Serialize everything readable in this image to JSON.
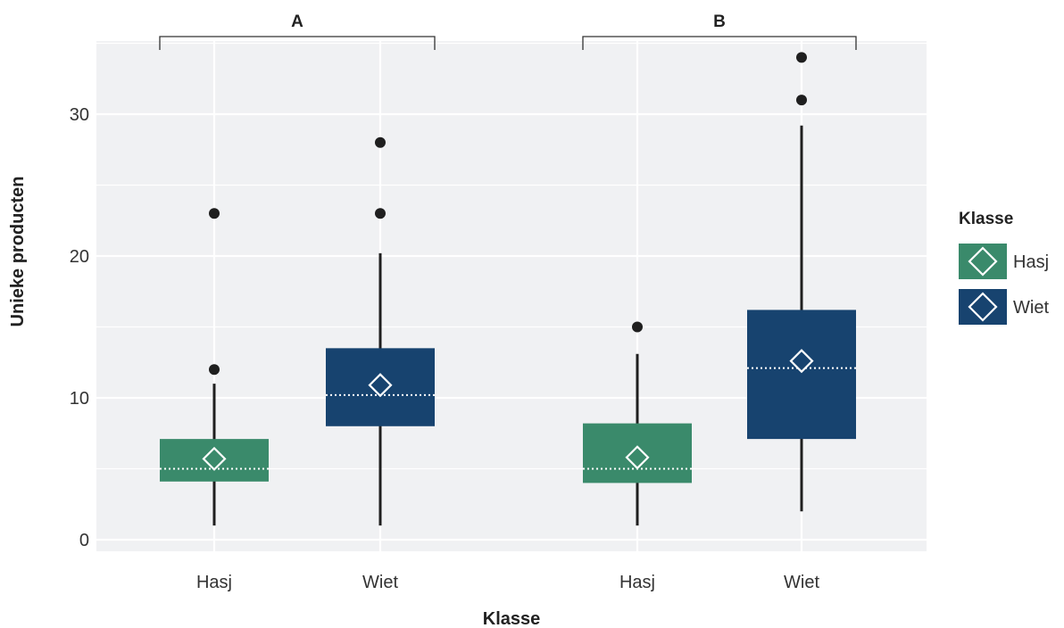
{
  "chart_data": {
    "type": "boxplot",
    "xlabel": "Klasse",
    "ylabel": "Unieke producten",
    "ylim": [
      -1,
      35.5
    ],
    "y_ticks": [
      0,
      10,
      20,
      30
    ],
    "grid": true,
    "facets": [
      "A",
      "B"
    ],
    "categories": [
      "Hasj",
      "Wiet"
    ],
    "legend": {
      "title": "Klasse",
      "placement": "right",
      "items": [
        {
          "label": "Hasj",
          "color": "#3a8a6b"
        },
        {
          "label": "Wiet",
          "color": "#17436f"
        }
      ]
    },
    "series": [
      {
        "facet": "A",
        "category": "Hasj",
        "color": "#3a8a6b",
        "min": 1,
        "q1": 4.1,
        "median": 5,
        "mean": 5.7,
        "q3": 7.1,
        "max": 11,
        "outliers": [
          12,
          23
        ]
      },
      {
        "facet": "A",
        "category": "Wiet",
        "color": "#17436f",
        "min": 1,
        "q1": 8,
        "median": 10.2,
        "mean": 10.9,
        "q3": 13.5,
        "max": 20.2,
        "outliers": [
          23,
          28
        ]
      },
      {
        "facet": "B",
        "category": "Hasj",
        "color": "#3a8a6b",
        "min": 1,
        "q1": 4,
        "median": 5,
        "mean": 5.8,
        "q3": 8.2,
        "max": 13.1,
        "outliers": [
          15
        ]
      },
      {
        "facet": "B",
        "category": "Wiet",
        "color": "#17436f",
        "min": 2,
        "q1": 7.1,
        "median": 12.1,
        "mean": 12.6,
        "q3": 16.2,
        "max": 29.2,
        "outliers": [
          31,
          34
        ]
      }
    ]
  }
}
